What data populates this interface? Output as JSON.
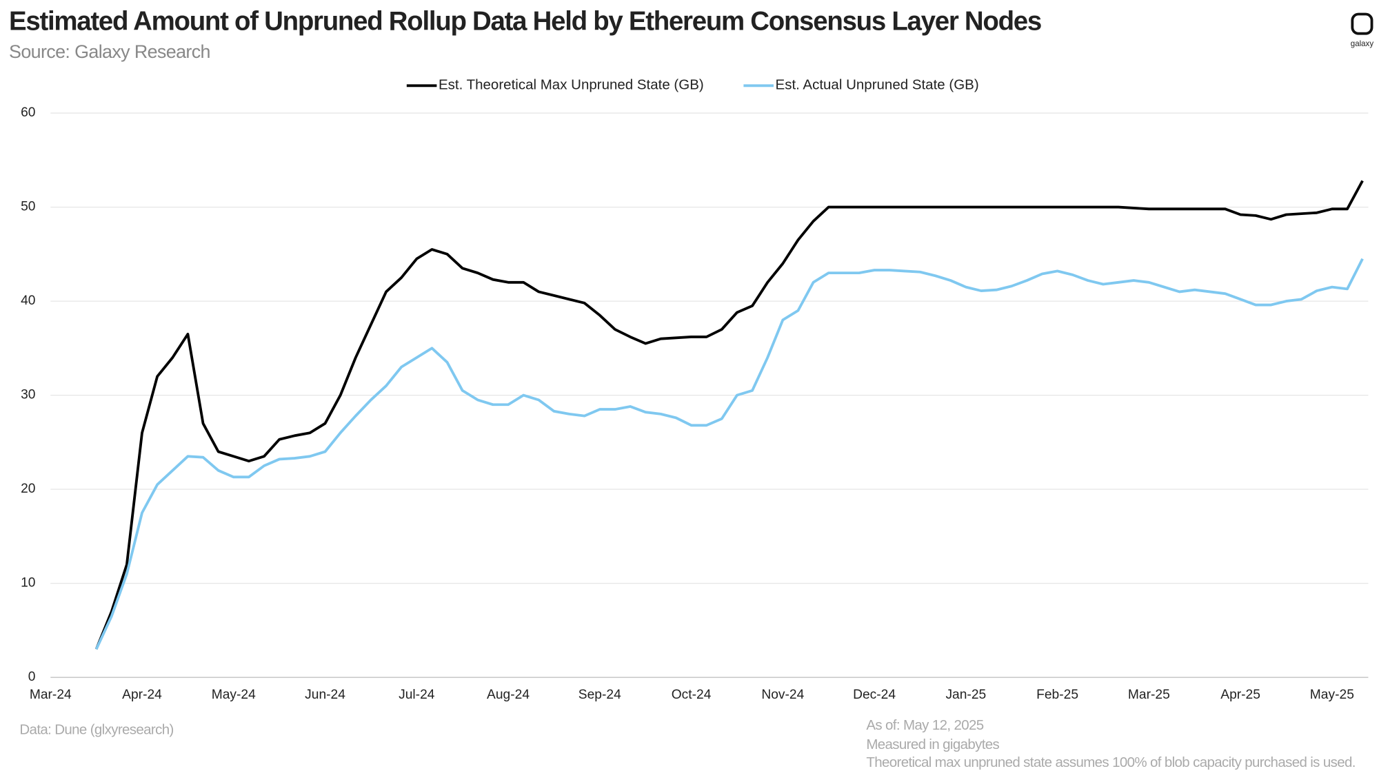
{
  "chart_data": {
    "type": "line",
    "title": "Estimated Amount of Unpruned Rollup Data Held by Ethereum Consensus Layer Nodes",
    "subtitle": "Source: Galaxy Research",
    "logo": "galaxy",
    "source_note": "Data: Dune (glxyresearch)",
    "notes": [
      "As of: May 12, 2025",
      "Measured in gigabytes",
      "Theoretical max unpruned state assumes 100% of blob capacity purchased is used."
    ],
    "legend_position": "top",
    "grid": true,
    "ylim": [
      0,
      60
    ],
    "yticks": [
      0,
      10,
      20,
      30,
      40,
      50,
      60
    ],
    "categories": [
      "Mar-24",
      null,
      null,
      null,
      null,
      null,
      "Apr-24",
      null,
      null,
      null,
      null,
      null,
      "May-24",
      null,
      null,
      null,
      null,
      null,
      "Jun-24",
      null,
      null,
      null,
      null,
      null,
      "Jul-24",
      null,
      null,
      null,
      null,
      null,
      "Aug-24",
      null,
      null,
      null,
      null,
      null,
      "Sep-24",
      null,
      null,
      null,
      null,
      null,
      "Oct-24",
      null,
      null,
      null,
      null,
      null,
      "Nov-24",
      null,
      null,
      null,
      null,
      null,
      "Dec-24",
      null,
      null,
      null,
      null,
      null,
      "Jan-25",
      null,
      null,
      null,
      null,
      null,
      "Feb-25",
      null,
      null,
      null,
      null,
      null,
      "Mar-25",
      null,
      null,
      null,
      null,
      null,
      "Apr-25",
      null,
      null,
      null,
      null,
      null,
      "May-25",
      null,
      null
    ],
    "series": [
      {
        "name": "Est. Theoretical Max Unpruned State (GB)",
        "color": "#000000",
        "values": [
          null,
          null,
          null,
          3,
          7,
          12,
          26,
          32,
          34,
          36.5,
          27,
          24,
          23.5,
          23,
          23.5,
          25.3,
          25.7,
          26,
          27,
          30,
          34,
          37.5,
          41,
          42.5,
          44.5,
          45.5,
          45,
          43.5,
          43,
          42.3,
          42,
          42,
          41,
          40.6,
          40.2,
          39.8,
          38.5,
          37,
          36.2,
          35.5,
          36,
          36.1,
          36.2,
          36.2,
          37,
          38.8,
          39.5,
          42,
          44,
          46.5,
          48.5,
          50,
          50,
          50,
          50,
          50,
          50,
          50,
          50,
          50,
          50,
          50,
          50,
          50,
          50,
          50,
          50,
          50,
          50,
          50,
          50,
          49.9,
          49.8,
          49.8,
          49.8,
          49.8,
          49.8,
          49.8,
          49.2,
          49.1,
          48.7,
          49.2,
          49.3,
          49.4,
          49.8,
          49.8,
          52.8
        ]
      },
      {
        "name": "Est. Actual Unpruned State (GB)",
        "color": "#7fc8f0",
        "values": [
          null,
          null,
          null,
          3,
          6.5,
          11,
          17.5,
          20.5,
          22,
          23.5,
          23.4,
          22,
          21.3,
          21.3,
          22.5,
          23.2,
          23.3,
          23.5,
          24,
          26,
          27.8,
          29.5,
          31,
          33,
          34,
          35,
          33.5,
          30.5,
          29.5,
          29,
          29,
          30,
          29.5,
          28.3,
          28,
          27.8,
          28.5,
          28.5,
          28.8,
          28.2,
          28,
          27.6,
          26.8,
          26.8,
          27.5,
          30,
          30.5,
          34,
          38,
          39,
          42,
          43,
          43,
          43,
          43.3,
          43.3,
          43.2,
          43.1,
          42.7,
          42.2,
          41.5,
          41.1,
          41.2,
          41.6,
          42.2,
          42.9,
          43.2,
          42.8,
          42.2,
          41.8,
          42,
          42.2,
          42,
          41.5,
          41,
          41.2,
          41,
          40.8,
          40.2,
          39.6,
          39.6,
          40,
          40.2,
          41.1,
          41.5,
          41.3,
          44.5
        ]
      }
    ]
  }
}
